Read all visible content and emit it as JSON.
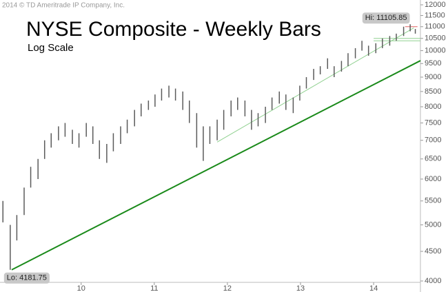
{
  "chart_data": {
    "type": "ohlc",
    "title": "NYSE Composite - Weekly Bars",
    "subtitle": "Log Scale",
    "copyright": "2014 © TD Ameritrade IP Company, Inc.",
    "color": "#5a5a5a",
    "log_scale": true,
    "grid": false,
    "x": [
      2008.93,
      2009.03,
      2009.12,
      2009.22,
      2009.31,
      2009.41,
      2009.5,
      2009.59,
      2009.69,
      2009.78,
      2009.88,
      2009.97,
      2010.07,
      2010.16,
      2010.25,
      2010.35,
      2010.44,
      2010.54,
      2010.63,
      2010.73,
      2010.82,
      2010.92,
      2011.01,
      2011.1,
      2011.2,
      2011.29,
      2011.39,
      2011.48,
      2011.58,
      2011.67,
      2011.76,
      2011.86,
      2011.95,
      2012.05,
      2012.14,
      2012.24,
      2012.33,
      2012.42,
      2012.52,
      2012.61,
      2012.71,
      2012.8,
      2012.9,
      2012.99,
      2013.08,
      2013.18,
      2013.27,
      2013.37,
      2013.46,
      2013.56,
      2013.65,
      2013.75,
      2013.84,
      2013.93,
      2014.03,
      2014.12,
      2014.22,
      2014.31,
      2014.41,
      2014.5,
      2014.57
    ],
    "high": [
      5500,
      5000,
      5200,
      5800,
      6300,
      6500,
      7000,
      7200,
      7400,
      7500,
      7300,
      7200,
      7500,
      7400,
      7000,
      6900,
      7200,
      7400,
      7600,
      7900,
      8100,
      8200,
      8400,
      8600,
      8700,
      8600,
      8500,
      8200,
      7800,
      7400,
      7400,
      7600,
      7900,
      8200,
      8300,
      8200,
      7900,
      7800,
      8000,
      8300,
      8500,
      8400,
      8300,
      8700,
      9000,
      9300,
      9400,
      9700,
      9400,
      9600,
      9900,
      10100,
      10400,
      10200,
      10300,
      10500,
      10600,
      10700,
      11000,
      11105.85,
      10900
    ],
    "low": [
      5050,
      4181.75,
      4700,
      5200,
      5800,
      6000,
      6500,
      6800,
      7000,
      7100,
      6900,
      6800,
      7100,
      6900,
      6500,
      6400,
      6700,
      6900,
      7200,
      7400,
      7700,
      7900,
      8000,
      8200,
      8300,
      8200,
      7900,
      7500,
      6800,
      6450,
      6900,
      7000,
      7300,
      7700,
      7900,
      7700,
      7300,
      7400,
      7500,
      7900,
      8100,
      7900,
      7800,
      8200,
      8600,
      8900,
      9100,
      9300,
      9000,
      9200,
      9400,
      9700,
      10000,
      9800,
      9900,
      10100,
      10200,
      10400,
      10600,
      10800,
      10700
    ],
    "xlim": [
      2008.89,
      2014.64
    ],
    "xticks": [
      {
        "value": 2010,
        "label": "10"
      },
      {
        "value": 2011,
        "label": "11"
      },
      {
        "value": 2012,
        "label": "12"
      },
      {
        "value": 2013,
        "label": "13"
      },
      {
        "value": 2014,
        "label": "14"
      }
    ],
    "ylim": [
      4000,
      12000
    ],
    "yticks": [
      4000,
      4500,
      5000,
      5500,
      6000,
      6500,
      7000,
      7500,
      8000,
      8500,
      9000,
      9500,
      10000,
      10500,
      11000,
      11500,
      12000
    ],
    "trendlines": [
      {
        "x": [
          2009.05,
          2014.64
        ],
        "y": [
          4181.75,
          9610
        ],
        "color": "#1a8a1a",
        "width": 2
      },
      {
        "x": [
          2011.86,
          2014.55
        ],
        "y": [
          6950,
          10950
        ],
        "color": "#8fd08f",
        "width": 1
      },
      {
        "x": [
          2014.0,
          2014.64
        ],
        "y": [
          10500,
          10500
        ],
        "color": "#8fd08f",
        "width": 1
      },
      {
        "x": [
          2014.0,
          2014.64
        ],
        "y": [
          10400,
          10400
        ],
        "color": "#8fd08f",
        "width": 1
      },
      {
        "x": [
          2014.43,
          2014.6
        ],
        "y": [
          11000,
          11000
        ],
        "color": "#e06060",
        "width": 1
      }
    ],
    "annotations": [
      {
        "text": "Hi: 11105.85",
        "x": 2014.5,
        "y": 11105.85
      },
      {
        "text": "Lo: 4181.75",
        "x": 2009.03,
        "y": 4181.75
      }
    ]
  }
}
